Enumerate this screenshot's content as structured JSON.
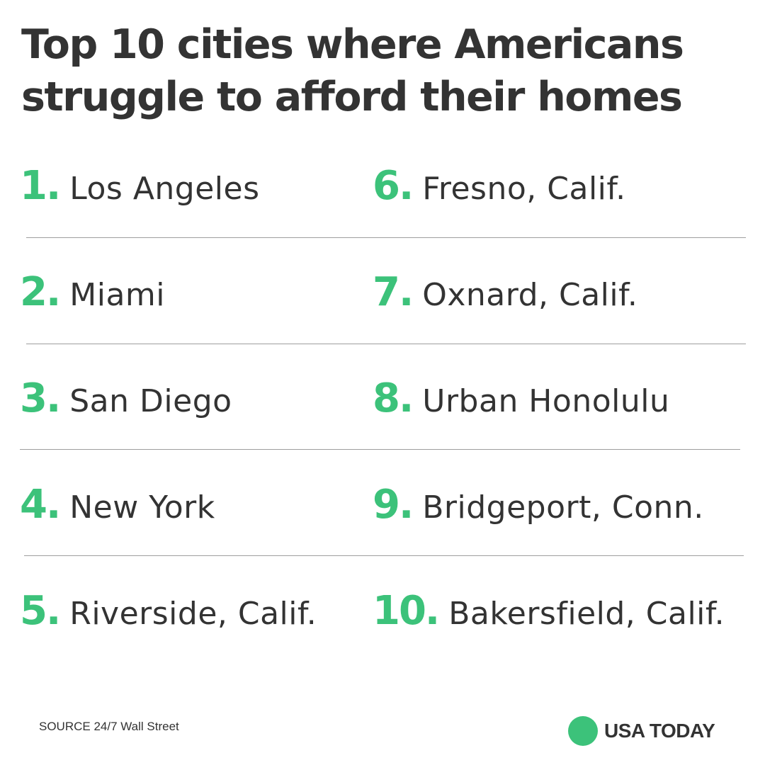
{
  "title": "Top 10 cities where Americans struggle to afford their homes",
  "accent_color": "#3cc27a",
  "items": [
    {
      "rank": "1.",
      "city": "Los Angeles"
    },
    {
      "rank": "2.",
      "city": "Miami"
    },
    {
      "rank": "3.",
      "city": "San Diego"
    },
    {
      "rank": "4.",
      "city": "New York"
    },
    {
      "rank": "5.",
      "city": "Riverside, Calif."
    },
    {
      "rank": "6.",
      "city": "Fresno, Calif."
    },
    {
      "rank": "7.",
      "city": "Oxnard, Calif."
    },
    {
      "rank": "8.",
      "city": "Urban Honolulu"
    },
    {
      "rank": "9.",
      "city": "Bridgeport, Conn."
    },
    {
      "rank": "10.",
      "city": "Bakersfield, Calif."
    }
  ],
  "footer": {
    "source": "SOURCE 24/7 Wall Street",
    "brand": "USA TODAY"
  }
}
